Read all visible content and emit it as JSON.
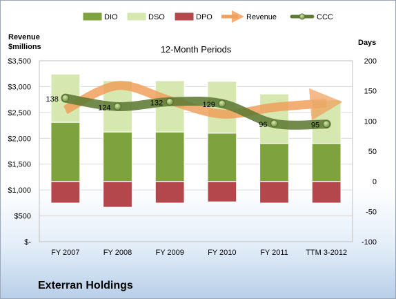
{
  "chart_data": {
    "type": "bar",
    "title": "12-Month Periods",
    "ylabel_left": "Revenue $millions",
    "ylabel_right": "Days",
    "categories": [
      "FY 2007",
      "FY 2008",
      "FY 2009",
      "FY 2010",
      "FY 2011",
      "TTM 3-2012"
    ],
    "ylim_left": [
      0,
      3500
    ],
    "ylim_right": [
      -100,
      200
    ],
    "yticks_left": [
      "$-",
      "$500",
      "$1,000",
      "$1,500",
      "$2,000",
      "$2,500",
      "$3,000",
      "$3,500"
    ],
    "yticks_right": [
      "-100",
      "-50",
      "0",
      "50",
      "100",
      "150",
      "200"
    ],
    "legend_position": "top",
    "grid": true,
    "series": [
      {
        "name": "DIO",
        "axis": "right",
        "kind": "stacked-bar",
        "color": "#7ea23e",
        "values": [
          98,
          82,
          82,
          80,
          63,
          63
        ]
      },
      {
        "name": "DSO",
        "axis": "right",
        "kind": "stacked-bar",
        "color": "#d6e7b0",
        "values": [
          80,
          85,
          85,
          86,
          82,
          72
        ]
      },
      {
        "name": "DPO",
        "axis": "right",
        "kind": "bar-negative",
        "color": "#b3474b",
        "values": [
          -36,
          -43,
          -36,
          -34,
          -36,
          -36
        ]
      },
      {
        "name": "Revenue",
        "axis": "left",
        "kind": "line",
        "color": "#f0a05c",
        "values": [
          2550,
          3020,
          2730,
          2470,
          2600,
          2680
        ]
      },
      {
        "name": "CCC",
        "axis": "right",
        "kind": "line",
        "color": "#5f7b34",
        "values": [
          138,
          124,
          132,
          129,
          96,
          95
        ],
        "labels": [
          "138",
          "124",
          "132",
          "129",
          "96",
          "95"
        ]
      }
    ]
  },
  "company": "Exterran Holdings"
}
